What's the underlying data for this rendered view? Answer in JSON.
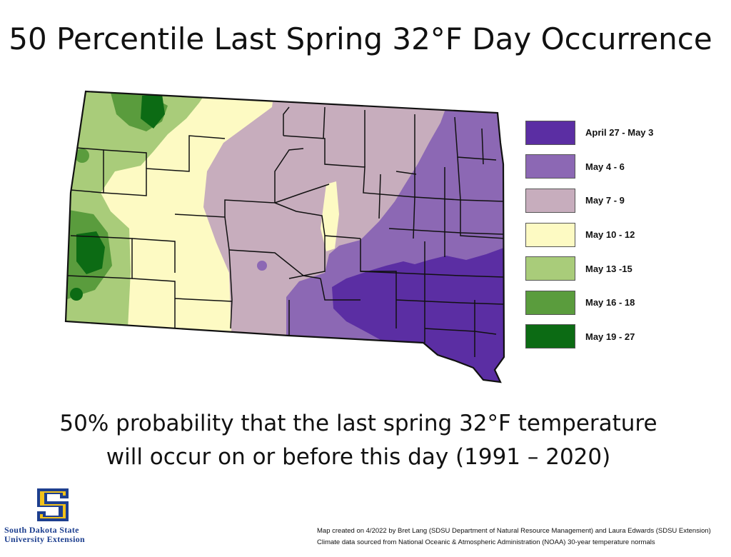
{
  "title": "50 Percentile Last Spring 32°F Day Occurrence",
  "subtitle": {
    "line1": "50% probability that the last spring 32°F temperature",
    "line2": "will occur on or before this day (1991 – 2020)"
  },
  "legend": [
    {
      "label": "April 27 - May 3",
      "color": "#5b2ea3"
    },
    {
      "label": "May 4 - 6",
      "color": "#8c68b4"
    },
    {
      "label": "May 7 - 9",
      "color": "#c7adbd"
    },
    {
      "label": "May 10 - 12",
      "color": "#fdfac3"
    },
    {
      "label": "May 13 -15",
      "color": "#a9cc7a"
    },
    {
      "label": "May 16 - 18",
      "color": "#5a9c3d"
    },
    {
      "label": "May 19 - 27",
      "color": "#0c6b14"
    }
  ],
  "logo": {
    "line1": "South Dakota State",
    "line2": "University Extension",
    "primary_color": "#1d3f8f",
    "accent_color": "#f2c21a"
  },
  "credit": {
    "line1": "Map created on 4/2022 by Bret Lang (SDSU Department of Natural Resource Management) and Laura Edwards (SDSU Extension)",
    "line2": "Climate data sourced from National Oceanic & Atmospheric Administration (NOAA) 30-year temperature normals"
  }
}
